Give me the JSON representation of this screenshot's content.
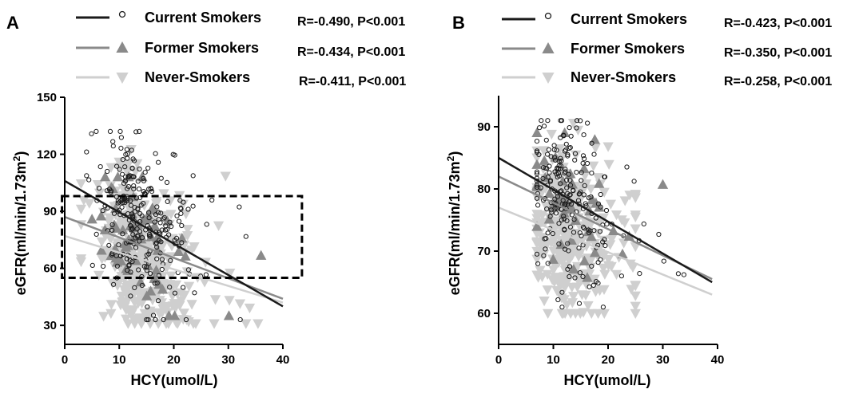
{
  "chart_data": [
    {
      "panel": "A",
      "type": "scatter",
      "xlabel": "HCY(umol/L)",
      "ylabel": "eGFR(ml/min/1.73m2)",
      "xlim": [
        0,
        40
      ],
      "ylim": [
        20,
        150
      ],
      "xticks": [
        0,
        10,
        20,
        30,
        40
      ],
      "yticks": [
        30,
        60,
        90,
        120,
        150
      ],
      "grid": false,
      "legend_position": "top",
      "highlight_box": {
        "x_range": [
          -0.5,
          43.5
        ],
        "y_range": [
          55,
          98
        ],
        "style": "dashed"
      },
      "series": [
        {
          "name": "Current Smokers",
          "marker": "open-circle",
          "color": "#1a1a1a",
          "stat": "R=-0.490, P<0.001",
          "fit_line": {
            "x": [
              0,
              40
            ],
            "y": [
              106,
              40
            ]
          },
          "points_summary": {
            "x_range": [
              4,
              39
            ],
            "y_range": [
              33,
              132
            ]
          }
        },
        {
          "name": "Former Smokers",
          "marker": "filled-triangle-up",
          "color": "#8a8a8a",
          "stat": "R=-0.434, P<0.001",
          "fit_line": {
            "x": [
              0,
              40
            ],
            "y": [
              87,
              44
            ]
          },
          "points_summary": {
            "x_range": [
              5,
              36
            ],
            "y_range": [
              35,
              108
            ]
          }
        },
        {
          "name": "Never-Smokers",
          "marker": "filled-triangle-down",
          "color": "#cfcfcf",
          "stat": "R=-0.411, P<0.001",
          "fit_line": {
            "x": [
              0,
              40
            ],
            "y": [
              77,
              42
            ]
          },
          "points_summary": {
            "x_range": [
              3,
              36
            ],
            "y_range": [
              31,
              125
            ]
          }
        }
      ]
    },
    {
      "panel": "B",
      "type": "scatter",
      "xlabel": "HCY(umol/L)",
      "ylabel": "eGFR(ml/min/1.73m2)",
      "xlim": [
        0,
        40
      ],
      "ylim": [
        55,
        95
      ],
      "xticks": [
        0,
        10,
        20,
        30,
        40
      ],
      "yticks": [
        60,
        70,
        80,
        90
      ],
      "grid": false,
      "legend_position": "top",
      "series": [
        {
          "name": "Current Smokers",
          "marker": "open-circle",
          "color": "#1a1a1a",
          "stat": "R=-0.423, P<0.001",
          "fit_line": {
            "x": [
              0,
              39
            ],
            "y": [
              85,
              65
            ]
          },
          "points_summary": {
            "x_range": [
              7,
              38
            ],
            "y_range": [
              61,
              91
            ]
          }
        },
        {
          "name": "Former Smokers",
          "marker": "filled-triangle-up",
          "color": "#8a8a8a",
          "stat": "R=-0.350, P<0.001",
          "fit_line": {
            "x": [
              0,
              39
            ],
            "y": [
              82,
              65.5
            ]
          },
          "points_summary": {
            "x_range": [
              7,
              30
            ],
            "y_range": [
              61,
              89
            ]
          }
        },
        {
          "name": "Never-Smokers",
          "marker": "filled-triangle-down",
          "color": "#cfcfcf",
          "stat": "R=-0.258, P<0.001",
          "fit_line": {
            "x": [
              0,
              39
            ],
            "y": [
              77,
              63
            ]
          },
          "points_summary": {
            "x_range": [
              7,
              25
            ],
            "y_range": [
              60,
              91
            ]
          }
        }
      ]
    }
  ]
}
